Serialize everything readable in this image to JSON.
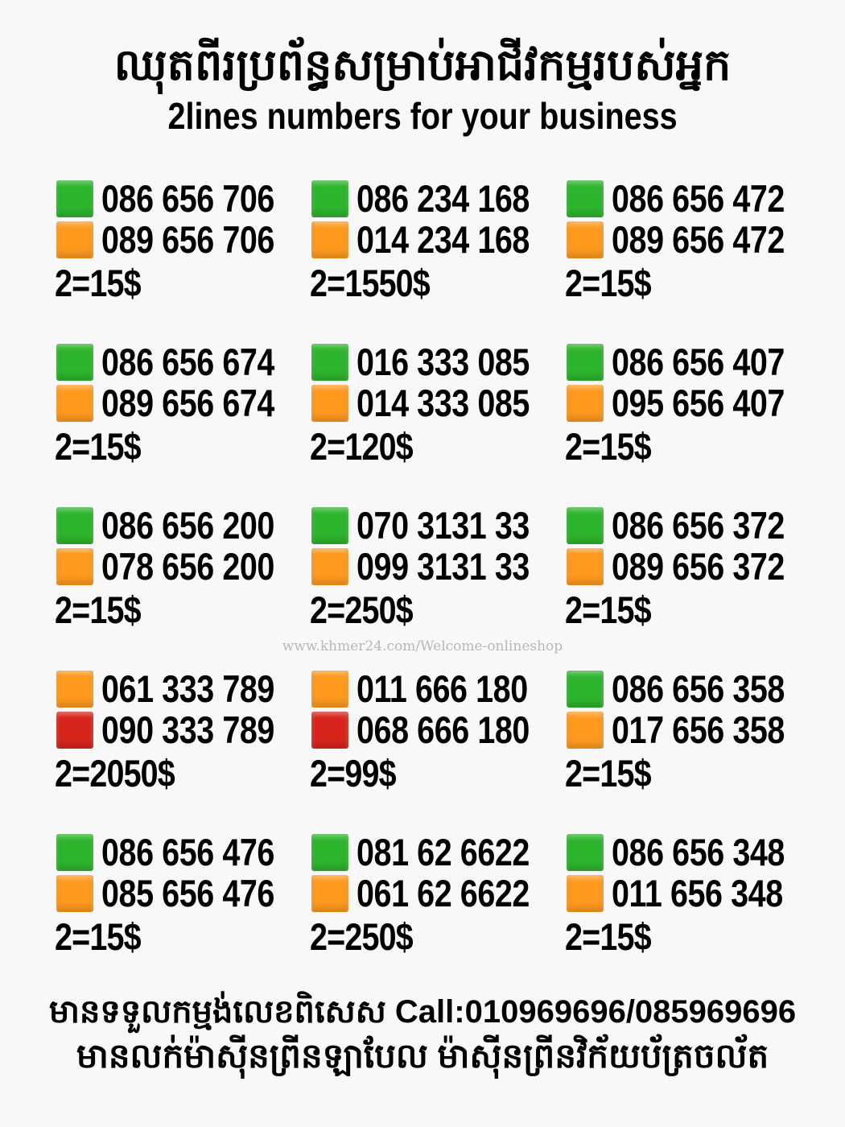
{
  "header": {
    "title_khmer": "ឈុតពីរប្រព័ន្ធសម្រាប់អាជីវកម្មរបស់អ្នក",
    "title_english": "2lines numbers for your business"
  },
  "colors": {
    "green": "#2db52d",
    "orange": "#ff9a1f",
    "red": "#d8251c"
  },
  "pairs": [
    {
      "line1": {
        "color": "green",
        "number": "086 656 706"
      },
      "line2": {
        "color": "orange",
        "number": "089 656 706"
      },
      "price": "2=15$"
    },
    {
      "line1": {
        "color": "green",
        "number": "086 234 168"
      },
      "line2": {
        "color": "orange",
        "number": "014 234 168"
      },
      "price": "2=1550$"
    },
    {
      "line1": {
        "color": "green",
        "number": "086 656 472"
      },
      "line2": {
        "color": "orange",
        "number": "089 656 472"
      },
      "price": "2=15$"
    },
    {
      "line1": {
        "color": "green",
        "number": "086 656 674"
      },
      "line2": {
        "color": "orange",
        "number": "089 656 674"
      },
      "price": "2=15$"
    },
    {
      "line1": {
        "color": "green",
        "number": "016 333 085"
      },
      "line2": {
        "color": "orange",
        "number": "014 333 085"
      },
      "price": "2=120$"
    },
    {
      "line1": {
        "color": "green",
        "number": "086 656 407"
      },
      "line2": {
        "color": "orange",
        "number": "095 656 407"
      },
      "price": "2=15$"
    },
    {
      "line1": {
        "color": "green",
        "number": "086 656 200"
      },
      "line2": {
        "color": "orange",
        "number": "078 656 200"
      },
      "price": "2=15$"
    },
    {
      "line1": {
        "color": "green",
        "number": "070 3131 33"
      },
      "line2": {
        "color": "orange",
        "number": "099 3131 33"
      },
      "price": "2=250$"
    },
    {
      "line1": {
        "color": "green",
        "number": "086 656 372"
      },
      "line2": {
        "color": "orange",
        "number": "089 656 372"
      },
      "price": "2=15$"
    },
    {
      "line1": {
        "color": "orange",
        "number": "061 333 789"
      },
      "line2": {
        "color": "red",
        "number": "090 333 789"
      },
      "price": "2=2050$"
    },
    {
      "line1": {
        "color": "orange",
        "number": "011 666 180"
      },
      "line2": {
        "color": "red",
        "number": "068 666 180"
      },
      "price": "2=99$"
    },
    {
      "line1": {
        "color": "green",
        "number": "086 656 358"
      },
      "line2": {
        "color": "orange",
        "number": "017 656 358"
      },
      "price": "2=15$"
    },
    {
      "line1": {
        "color": "green",
        "number": "086 656 476"
      },
      "line2": {
        "color": "orange",
        "number": "085 656 476"
      },
      "price": "2=15$"
    },
    {
      "line1": {
        "color": "green",
        "number": "081 62 6622"
      },
      "line2": {
        "color": "orange",
        "number": "061 62 6622"
      },
      "price": "2=250$"
    },
    {
      "line1": {
        "color": "green",
        "number": "086 656 348"
      },
      "line2": {
        "color": "orange",
        "number": "011 656 348"
      },
      "price": "2=15$"
    }
  ],
  "watermark": "www.khmer24.com/Welcome-onlineshop",
  "footer": {
    "line1": "មានទទួលកម្មង់លេខពិសេស Call:010969696/085969696",
    "line2": "មានលក់ម៉ាស៊ីនព្រីនឡាបែល ម៉ាស៊ីនព្រីនវិក័យប័ត្រចល័ត"
  }
}
